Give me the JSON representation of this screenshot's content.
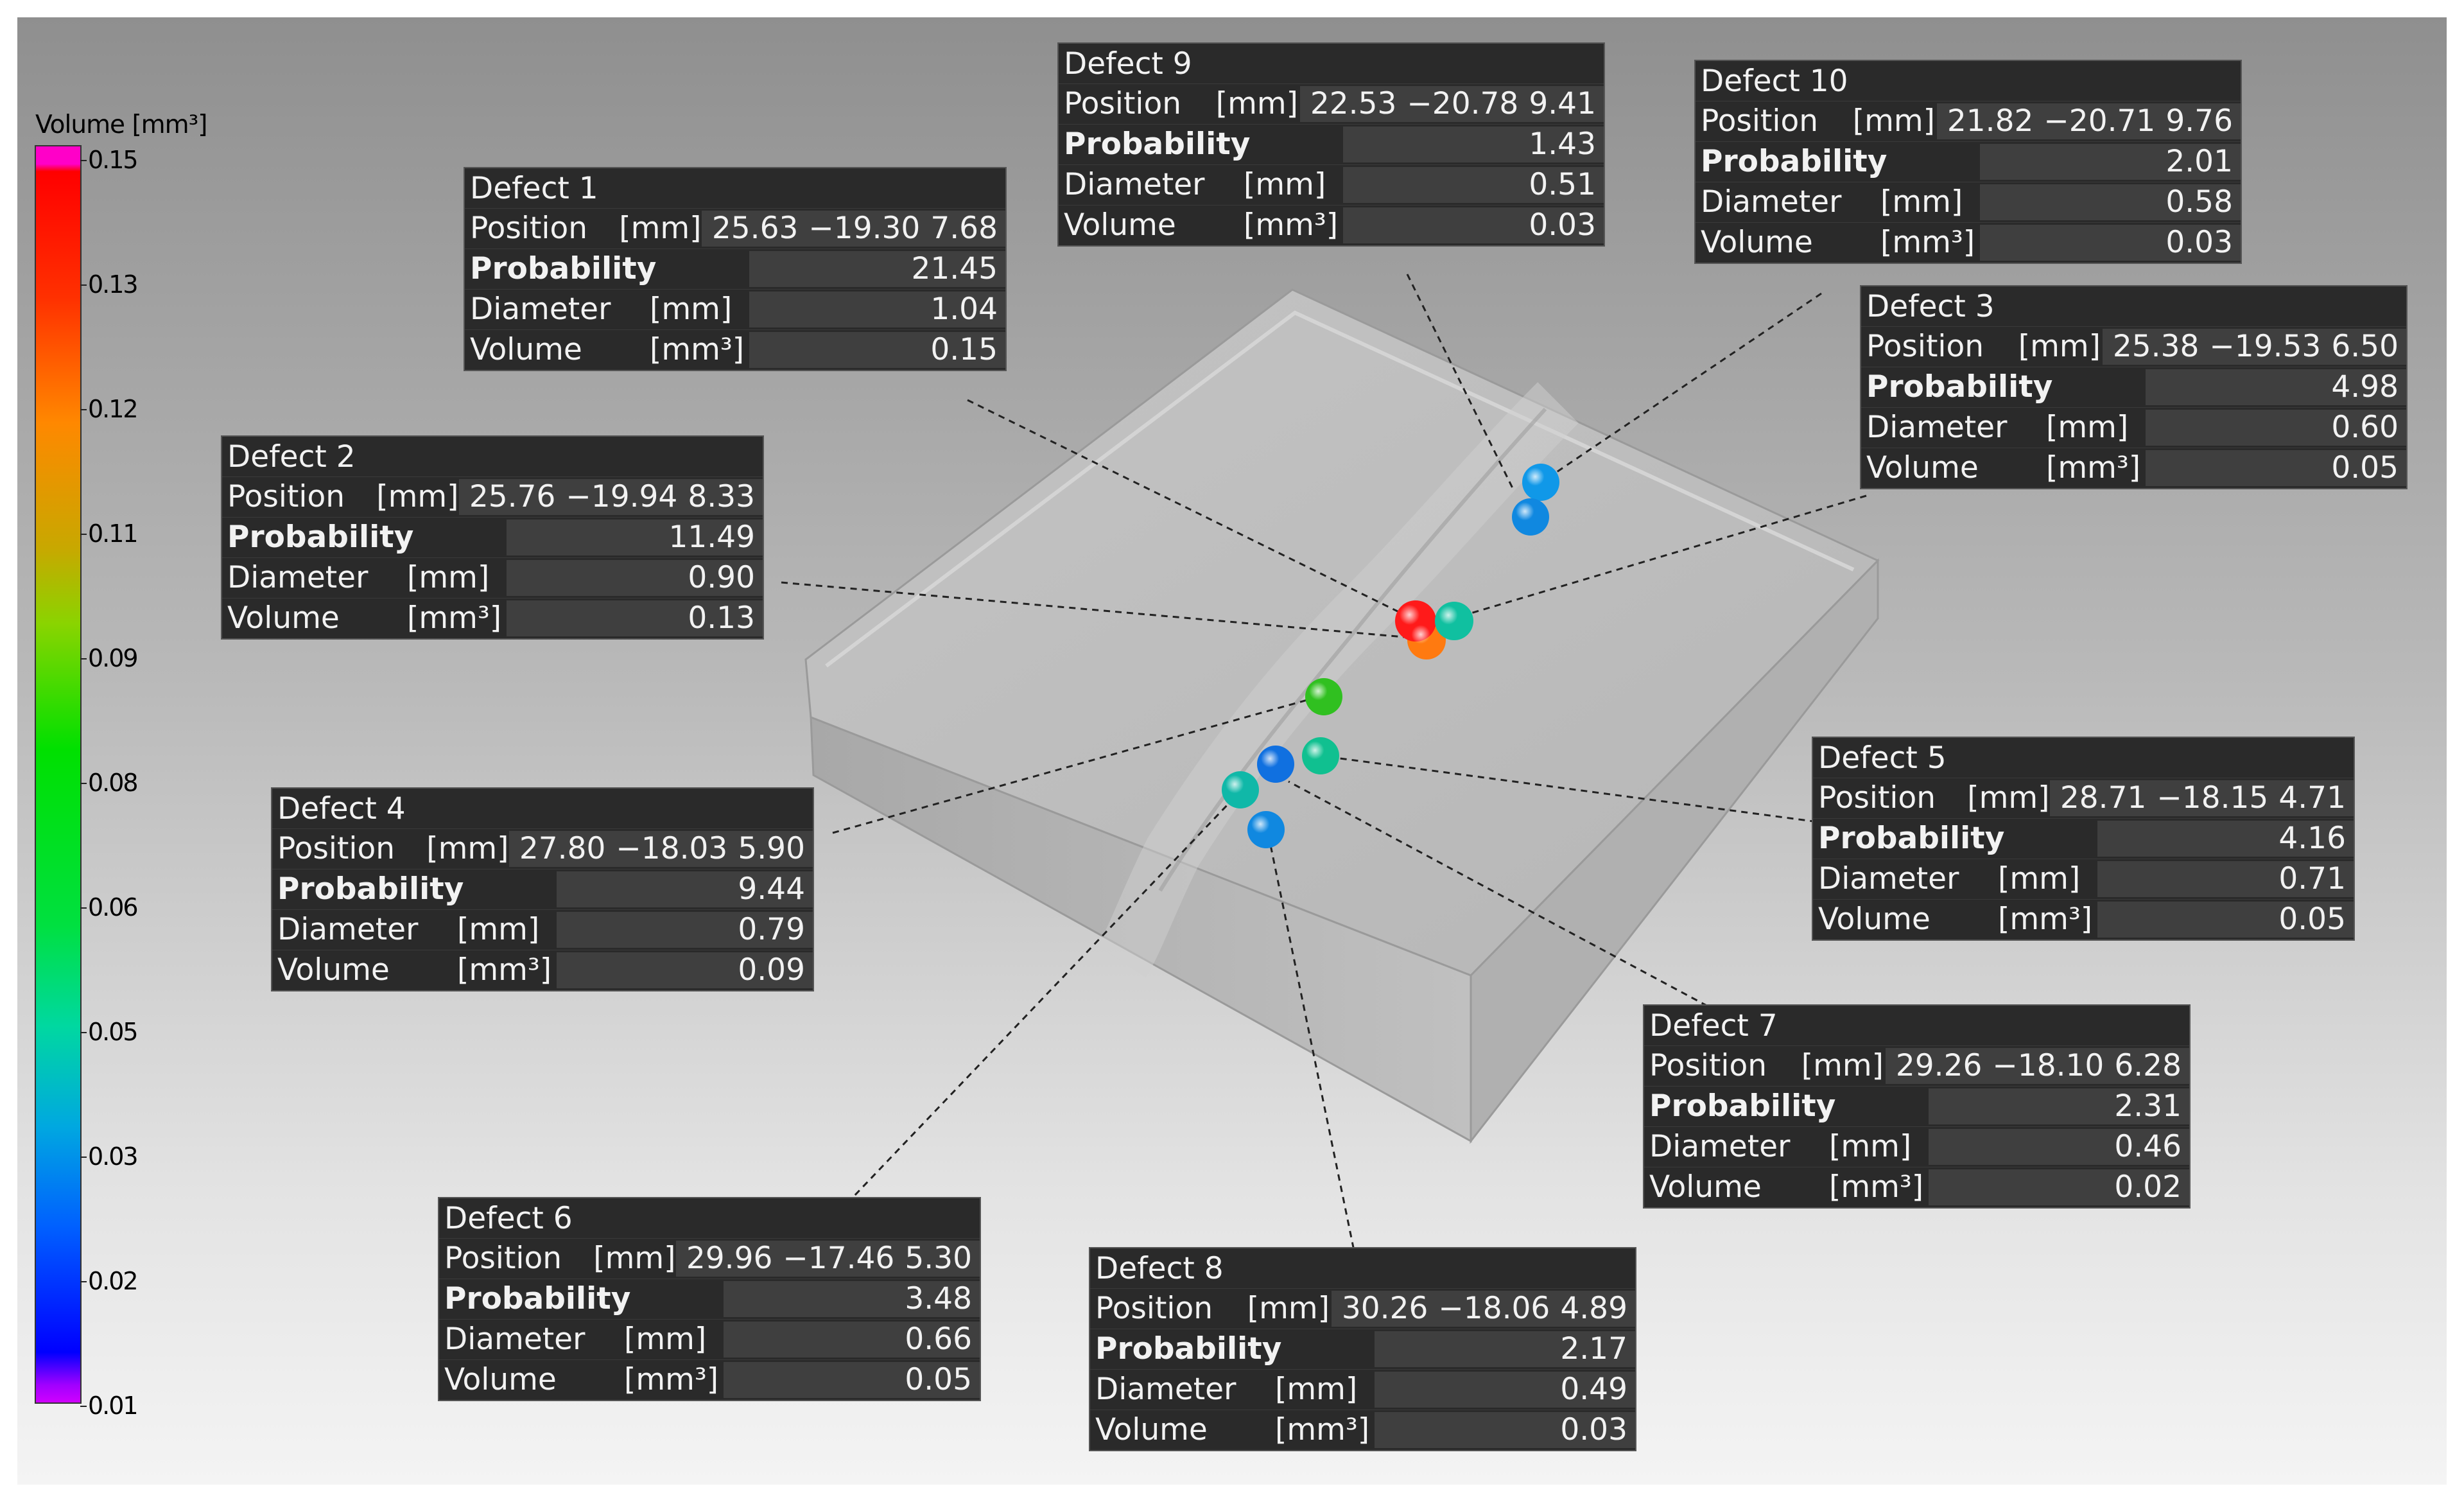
{
  "legend": {
    "title": "Volume [mm³]",
    "ticks": [
      "0.15",
      "0.13",
      "0.12",
      "0.11",
      "0.09",
      "0.08",
      "0.06",
      "0.05",
      "0.03",
      "0.02",
      "0.01"
    ]
  },
  "labels": {
    "position": "Position",
    "probability": "Probability",
    "diameter": "Diameter",
    "volume": "Volume",
    "mm": "[mm]",
    "mm3": "[mm³]"
  },
  "defects": [
    {
      "title": "Defect 1",
      "x": "25.63",
      "y": "−19.30",
      "z": "7.68",
      "probability": "21.45",
      "diameter": "1.04",
      "volume": "0.15"
    },
    {
      "title": "Defect 2",
      "x": "25.76",
      "y": "−19.94",
      "z": "8.33",
      "probability": "11.49",
      "diameter": "0.90",
      "volume": "0.13"
    },
    {
      "title": "Defect 3",
      "x": "25.38",
      "y": "−19.53",
      "z": "6.50",
      "probability": "4.98",
      "diameter": "0.60",
      "volume": "0.05"
    },
    {
      "title": "Defect 4",
      "x": "27.80",
      "y": "−18.03",
      "z": "5.90",
      "probability": "9.44",
      "diameter": "0.79",
      "volume": "0.09"
    },
    {
      "title": "Defect 5",
      "x": "28.71",
      "y": "−18.15",
      "z": "4.71",
      "probability": "4.16",
      "diameter": "0.71",
      "volume": "0.05"
    },
    {
      "title": "Defect 6",
      "x": "29.96",
      "y": "−17.46",
      "z": "5.30",
      "probability": "3.48",
      "diameter": "0.66",
      "volume": "0.05"
    },
    {
      "title": "Defect 7",
      "x": "29.26",
      "y": "−18.10",
      "z": "6.28",
      "probability": "2.31",
      "diameter": "0.46",
      "volume": "0.02"
    },
    {
      "title": "Defect 8",
      "x": "30.26",
      "y": "−18.06",
      "z": "4.89",
      "probability": "2.17",
      "diameter": "0.49",
      "volume": "0.03"
    },
    {
      "title": "Defect 9",
      "x": "22.53",
      "y": "−20.78",
      "z": "9.41",
      "probability": "1.43",
      "diameter": "0.51",
      "volume": "0.03"
    },
    {
      "title": "Defect 10",
      "x": "21.82",
      "y": "−20.71",
      "z": "9.76",
      "probability": "2.01",
      "diameter": "0.58",
      "volume": "0.03"
    }
  ],
  "colors": {
    "defect1": "#ff1a1a",
    "defect2": "#ff7a10",
    "defect3": "#10c0a0",
    "defect4": "#30c020",
    "defect5": "#10c090",
    "defect6": "#10b8a8",
    "defect7": "#1070e0",
    "defect8": "#1088e0",
    "defect9": "#1088e0",
    "defect10": "#1098e8"
  }
}
